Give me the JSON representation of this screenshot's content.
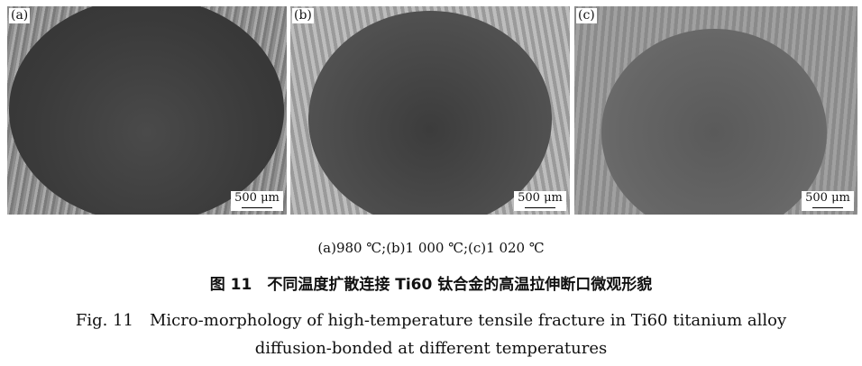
{
  "panels": [
    {
      "label": "(a)",
      "scale": "500 μm"
    },
    {
      "label": "(b)",
      "scale": "500 μm"
    },
    {
      "label": "(c)",
      "scale": "500 μm"
    }
  ],
  "subcaption": "(a)980 ℃;(b)1 000 ℃;(c)1 020 ℃",
  "caption_cn": "图 11　不同温度扩散连接 Ti60 钛合金的高温拉伸断口微观形貌",
  "caption_en_1": "Fig. 11　Micro-morphology of high-temperature tensile fracture in Ti60 titanium alloy",
  "caption_en_2": "diffusion-bonded at different temperatures"
}
